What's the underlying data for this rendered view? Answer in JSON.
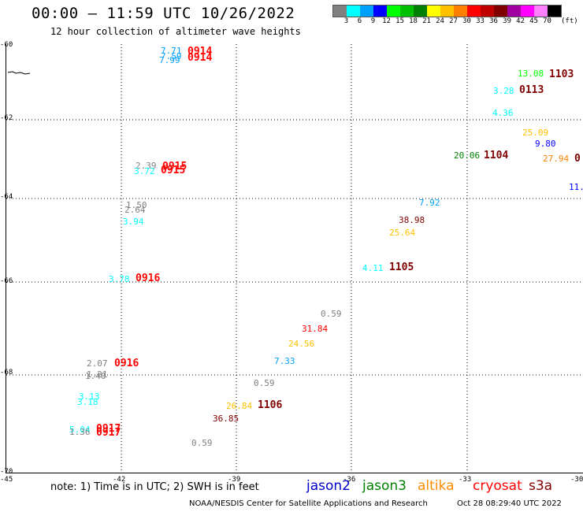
{
  "header": {
    "title": "00:00 — 11:59 UTC 10/26/2022",
    "subtitle": "12 hour collection of altimeter wave heights"
  },
  "colorbar": {
    "colors": [
      "#808080",
      "#00ffff",
      "#00a0ff",
      "#0000ff",
      "#00ff00",
      "#00c000",
      "#008000",
      "#ffff00",
      "#ffc000",
      "#ff8000",
      "#ff0000",
      "#c00000",
      "#800000",
      "#a000a0",
      "#ff00ff",
      "#ff80ff",
      "#000000"
    ],
    "labels": [
      "3",
      "6",
      "9",
      "12",
      "15",
      "18",
      "21",
      "24",
      "27",
      "30",
      "33",
      "36",
      "39",
      "42",
      "45",
      "70"
    ],
    "unit": "(ft)"
  },
  "axes": {
    "lat_labels": [
      "-60",
      "-62",
      "-64",
      "-66",
      "-68",
      "-70"
    ],
    "lon_labels": [
      "-45",
      "-42",
      "-39",
      "-36",
      "-33",
      "-30"
    ]
  },
  "map_points": [
    {
      "text": "7.71",
      "color": "#00a0ff"
    },
    {
      "text": "7.59",
      "color": "#00a0ff"
    },
    {
      "text": "7.99",
      "color": "#00a0ff"
    },
    {
      "text": "0914",
      "color": "#ff0000"
    },
    {
      "text": "0914",
      "color": "#ff0000"
    },
    {
      "text": "13.08",
      "color": "#00ff00"
    },
    {
      "text": "1103",
      "color": "#800000"
    },
    {
      "text": "3.28",
      "color": "#00ffff"
    },
    {
      "text": "0113",
      "color": "#800000"
    },
    {
      "text": "4.36",
      "color": "#00ffff"
    },
    {
      "text": "25.09",
      "color": "#ffc000"
    },
    {
      "text": "9.80",
      "color": "#0000ff"
    },
    {
      "text": "20.06",
      "color": "#008000"
    },
    {
      "text": "1104",
      "color": "#800000"
    },
    {
      "text": "27.94",
      "color": "#ff8000"
    },
    {
      "text": "0",
      "color": "#800000"
    },
    {
      "text": "11.6",
      "color": "#0000ff"
    },
    {
      "text": "2.39",
      "color": "#808080"
    },
    {
      "text": "3.72",
      "color": "#00ffff"
    },
    {
      "text": "0915",
      "color": "#ff0000"
    },
    {
      "text": "0915",
      "color": "#ff0000"
    },
    {
      "text": "1.50",
      "color": "#808080"
    },
    {
      "text": "2.64",
      "color": "#808080"
    },
    {
      "text": "3.94",
      "color": "#00ffff"
    },
    {
      "text": "7.92",
      "color": "#00a0ff"
    },
    {
      "text": "38.98",
      "color": "#800000"
    },
    {
      "text": "25.64",
      "color": "#ffc000"
    },
    {
      "text": "4.11",
      "color": "#00ffff"
    },
    {
      "text": "1105",
      "color": "#800000"
    },
    {
      "text": "3.78",
      "color": "#00ffff"
    },
    {
      "text": "0916",
      "color": "#ff0000"
    },
    {
      "text": "0.59",
      "color": "#808080"
    },
    {
      "text": "31.84",
      "color": "#ff0000"
    },
    {
      "text": "24.56",
      "color": "#ffc000"
    },
    {
      "text": "7.33",
      "color": "#00a0ff"
    },
    {
      "text": "2.07",
      "color": "#808080"
    },
    {
      "text": "1.21",
      "color": "#808080"
    },
    {
      "text": "1.40",
      "color": "#808080"
    },
    {
      "text": "0916",
      "color": "#ff0000"
    },
    {
      "text": "0.59",
      "color": "#808080"
    },
    {
      "text": "3.13",
      "color": "#00ffff"
    },
    {
      "text": "3.18",
      "color": "#00ffff"
    },
    {
      "text": "26.84",
      "color": "#ffc000"
    },
    {
      "text": "1106",
      "color": "#800000"
    },
    {
      "text": "36.85",
      "color": "#800000"
    },
    {
      "text": "5.04",
      "color": "#00ffff"
    },
    {
      "text": "1.36",
      "color": "#808080"
    },
    {
      "text": "0917",
      "color": "#ff0000"
    },
    {
      "text": "0917",
      "color": "#ff0000"
    },
    {
      "text": "0.59",
      "color": "#808080"
    }
  ],
  "footer": {
    "note": "note: 1) Time is in UTC; 2) SWH is in feet",
    "legend": [
      {
        "name": "jason2",
        "color": "#0000cc"
      },
      {
        "name": "jason3",
        "color": "#008000"
      },
      {
        "name": "altika",
        "color": "#ff8c00"
      },
      {
        "name": "cryosat",
        "color": "#ff0000"
      },
      {
        "name": "s3a",
        "color": "#800000"
      }
    ],
    "credit": "NOAA/NESDIS Center for Satellite Applications and Research",
    "timestamp": "Oct 28 08:29:40 UTC 2022"
  }
}
